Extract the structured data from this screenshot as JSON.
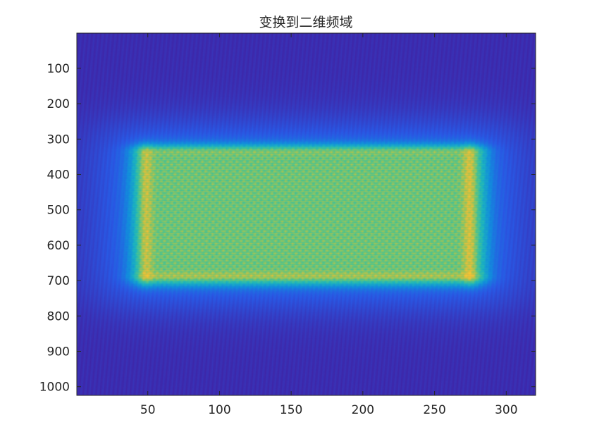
{
  "chart_data": {
    "type": "heatmap",
    "title": "变换到二维频域",
    "xlabel": "",
    "ylabel": "",
    "xlim": [
      0.5,
      320.5
    ],
    "ylim": [
      0.5,
      1024.5
    ],
    "y_reversed": true,
    "x_ticks": [
      50,
      100,
      150,
      200,
      250,
      300
    ],
    "y_ticks": [
      100,
      200,
      300,
      400,
      500,
      600,
      700,
      800,
      900,
      1000
    ],
    "x_tick_labels": [
      "50",
      "100",
      "150",
      "200",
      "250",
      "300"
    ],
    "y_tick_labels": [
      "100",
      "200",
      "300",
      "400",
      "500",
      "600",
      "700",
      "800",
      "900",
      "1000"
    ],
    "colormap": "parula",
    "grid": false,
    "bright_region": {
      "x_range": [
        40,
        285
      ],
      "y_range": [
        320,
        710
      ]
    },
    "bright_columns_x": [
      48,
      275
    ],
    "bright_rows_y": [
      330,
      690
    ]
  },
  "colors": {
    "background": "#ffffff",
    "axis": "#262626",
    "low": "#3e26a8",
    "mid": "#1fa5d5",
    "high": "#f5c030"
  }
}
